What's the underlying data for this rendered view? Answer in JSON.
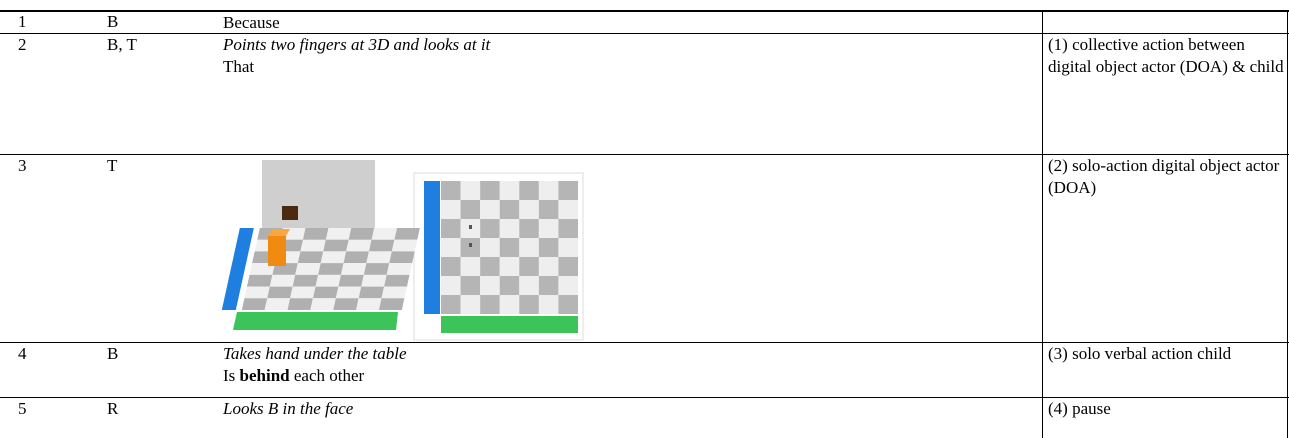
{
  "table": {
    "rows": [
      {
        "number": "1",
        "speaker": "B",
        "lines": [
          {
            "parts": [
              {
                "text": "Because",
                "style": "normal"
              }
            ]
          }
        ],
        "code": ""
      },
      {
        "number": "2",
        "speaker": "B, T",
        "lines": [
          {
            "parts": [
              {
                "text": "Points two fingers at 3D and looks at it",
                "style": "italic"
              }
            ]
          },
          {
            "parts": [
              {
                "text": "That",
                "style": "normal"
              }
            ]
          }
        ],
        "code": "(1) collective action between digital object actor (DOA) & child"
      },
      {
        "number": "3",
        "speaker": "T",
        "lines": [],
        "code": "(2) solo-action digital object actor (DOA)"
      },
      {
        "number": "4",
        "speaker": "B",
        "lines": [
          {
            "parts": [
              {
                "text": "Takes hand under the table",
                "style": "italic"
              }
            ]
          },
          {
            "parts": [
              {
                "text": "Is ",
                "style": "normal"
              },
              {
                "text": "behind",
                "style": "bold"
              },
              {
                "text": " each other",
                "style": "normal"
              }
            ]
          }
        ],
        "code": "(3) solo verbal action child"
      },
      {
        "number": "5",
        "speaker": "R",
        "lines": [
          {
            "parts": [
              {
                "text": "Looks B in the face",
                "style": "italic"
              }
            ]
          }
        ],
        "code": "(4) pause"
      }
    ]
  }
}
